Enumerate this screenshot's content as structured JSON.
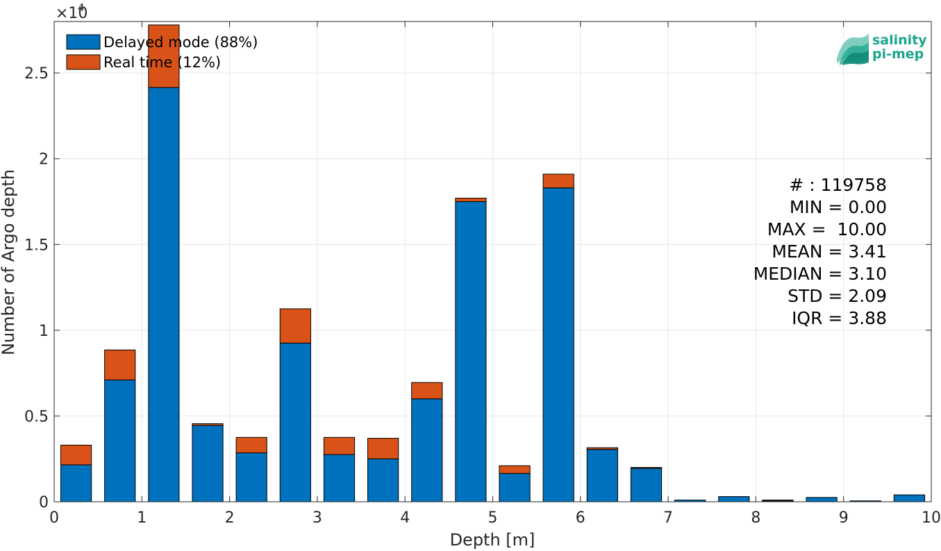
{
  "chart_data": {
    "type": "bar",
    "stacked": true,
    "xlabel": "Depth [m]",
    "ylabel": "Number of Argo depth",
    "xlim": [
      0,
      10
    ],
    "ylim": [
      0,
      28000
    ],
    "y_exponent_label": "×10",
    "y_exponent": "4",
    "x_ticks": [
      "0",
      "1",
      "2",
      "3",
      "4",
      "5",
      "6",
      "7",
      "8",
      "9",
      "10"
    ],
    "y_ticks": [
      "0",
      "0.5",
      "1",
      "1.5",
      "2",
      "2.5"
    ],
    "grid": true,
    "legend_position": "top-left",
    "bin_centers": [
      0.25,
      0.75,
      1.25,
      1.75,
      2.25,
      2.75,
      3.25,
      3.75,
      4.25,
      4.75,
      5.25,
      5.75,
      6.25,
      6.75,
      7.25,
      7.75,
      8.25,
      8.75,
      9.25,
      9.75
    ],
    "series": [
      {
        "name": "Delayed mode (88%)",
        "color": "#0072BD",
        "values": [
          2150,
          7100,
          24150,
          4450,
          2850,
          9250,
          2750,
          2500,
          6000,
          17500,
          1650,
          18300,
          3050,
          1950,
          100,
          300,
          50,
          250,
          50,
          400
        ]
      },
      {
        "name": "Real time (12%)",
        "color": "#D95319",
        "values": [
          1150,
          1750,
          3650,
          100,
          900,
          2000,
          1000,
          1200,
          950,
          200,
          450,
          800,
          100,
          50,
          0,
          0,
          50,
          0,
          0,
          0
        ]
      }
    ],
    "stats": [
      "# : 119758",
      "MIN = 0.00",
      "MAX =  10.00",
      "MEAN = 3.41",
      "MEDIAN = 3.10",
      "STD = 2.09",
      "IQR = 3.88"
    ]
  },
  "logo": {
    "line1": "salinity",
    "line2": "pi-mep",
    "color": "#1aa58c"
  }
}
